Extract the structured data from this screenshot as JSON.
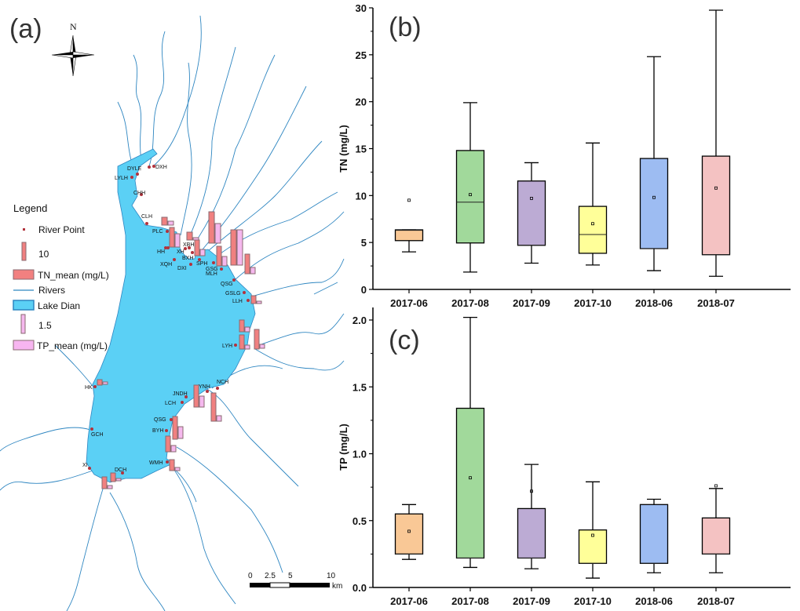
{
  "map": {
    "panel_label": "(a)",
    "north_label": "N",
    "legend": {
      "title": "Legend",
      "items": [
        {
          "label": "River Point",
          "color": "#b2323c"
        },
        {
          "label": "10",
          "color": "#f08080"
        },
        {
          "label": "TN_mean (mg/L)",
          "color": "#f28080"
        },
        {
          "label": "Rivers",
          "color": "#2e86c1"
        },
        {
          "label": "Lake Dian",
          "color": "#5bd0f5"
        },
        {
          "label": "1.5",
          "color": "#f5b8ee"
        },
        {
          "label": "TP_mean (mg/L)",
          "color": "#f7b5f0"
        }
      ]
    },
    "scale_bar": {
      "labels": [
        "0",
        "2.5",
        "5",
        "10"
      ],
      "unit": "km"
    },
    "sites": [
      "DYLE",
      "DXH",
      "LYLH",
      "CHH",
      "CLH",
      "PLC",
      "HH",
      "XH",
      "XBH",
      "BXH",
      "XQH",
      "DXI",
      "SPH",
      "GSG",
      "MLH",
      "QSG",
      "GSLG",
      "LLH",
      "LYH",
      "HK",
      "JNDH",
      "YNH",
      "NCH",
      "LCH",
      "QSG",
      "BYH",
      "GCH",
      "XI",
      "DCH",
      "WMH"
    ],
    "colors": {
      "lake": "#5bd0f5",
      "river": "#2e86c1",
      "tn_bar": "#f08080",
      "tp_bar": "#f5b8ee",
      "bar_edge": "#8a6a70",
      "point": "#b2323c"
    }
  },
  "chart_data": [
    {
      "type": "box",
      "panel_label": "(b)",
      "title": "",
      "xlabel": "",
      "ylabel": "TN (mg/L)",
      "ylim": [
        0,
        30
      ],
      "yticks": [
        "0",
        "5",
        "10",
        "15",
        "20",
        "25",
        "30"
      ],
      "categories": [
        "2017-06",
        "2017-08",
        "2017-09",
        "2017-10",
        "2018-06",
        "2018-07"
      ],
      "colors": [
        "#f9c896",
        "#a1d99b",
        "#bcabd4",
        "#ffff99",
        "#9dbcf2",
        "#f4c2c2"
      ],
      "series": [
        {
          "name": "2017-06",
          "min": 4.0,
          "q1": 5.2,
          "median": 6.3,
          "q3": 6.35,
          "max": 6.35,
          "mean": 9.5
        },
        {
          "name": "2017-08",
          "min": 1.85,
          "q1": 4.95,
          "median": 9.3,
          "q3": 14.8,
          "max": 19.9,
          "mean": 10.1
        },
        {
          "name": "2017-09",
          "min": 2.8,
          "q1": 4.7,
          "median": 4.7,
          "q3": 11.55,
          "max": 13.5,
          "mean": 9.7
        },
        {
          "name": "2017-10",
          "min": 2.6,
          "q1": 3.85,
          "median": 5.85,
          "q3": 8.85,
          "max": 15.6,
          "mean": 7.0
        },
        {
          "name": "2018-06",
          "min": 2.0,
          "q1": 4.35,
          "median": 4.35,
          "q3": 13.95,
          "max": 24.8,
          "mean": 9.8
        },
        {
          "name": "2018-07",
          "min": 1.4,
          "q1": 3.7,
          "median": 3.7,
          "q3": 14.2,
          "max": 29.75,
          "mean": 10.8
        }
      ]
    },
    {
      "type": "box",
      "panel_label": "(c)",
      "title": "",
      "xlabel": "",
      "ylabel": "TP (mg/L)",
      "ylim": [
        0,
        2.1
      ],
      "yticks": [
        "0.0",
        "0.5",
        "1.0",
        "1.5",
        "2.0"
      ],
      "categories": [
        "2017-06",
        "2017-08",
        "2017-09",
        "2017-10",
        "2018-06",
        "2018-07"
      ],
      "colors": [
        "#f9c896",
        "#a1d99b",
        "#bcabd4",
        "#ffff99",
        "#9dbcf2",
        "#f4c2c2"
      ],
      "series": [
        {
          "name": "2017-06",
          "min": 0.21,
          "q1": 0.25,
          "median": 0.25,
          "q3": 0.55,
          "max": 0.62,
          "mean": 0.42
        },
        {
          "name": "2017-08",
          "min": 0.15,
          "q1": 0.22,
          "median": 0.22,
          "q3": 1.34,
          "max": 2.02,
          "mean": 0.82
        },
        {
          "name": "2017-09",
          "min": 0.14,
          "q1": 0.22,
          "median": 0.22,
          "q3": 0.59,
          "max": 0.92,
          "mean": 0.72
        },
        {
          "name": "2017-10",
          "min": 0.07,
          "q1": 0.18,
          "median": 0.18,
          "q3": 0.43,
          "max": 0.79,
          "mean": 0.39
        },
        {
          "name": "2018-06",
          "min": 0.11,
          "q1": 0.18,
          "median": 0.18,
          "q3": 0.62,
          "max": 0.66,
          "mean": null
        },
        {
          "name": "2018-07",
          "min": 0.11,
          "q1": 0.25,
          "median": 0.25,
          "q3": 0.52,
          "max": 0.74,
          "mean": 0.76
        }
      ]
    }
  ]
}
